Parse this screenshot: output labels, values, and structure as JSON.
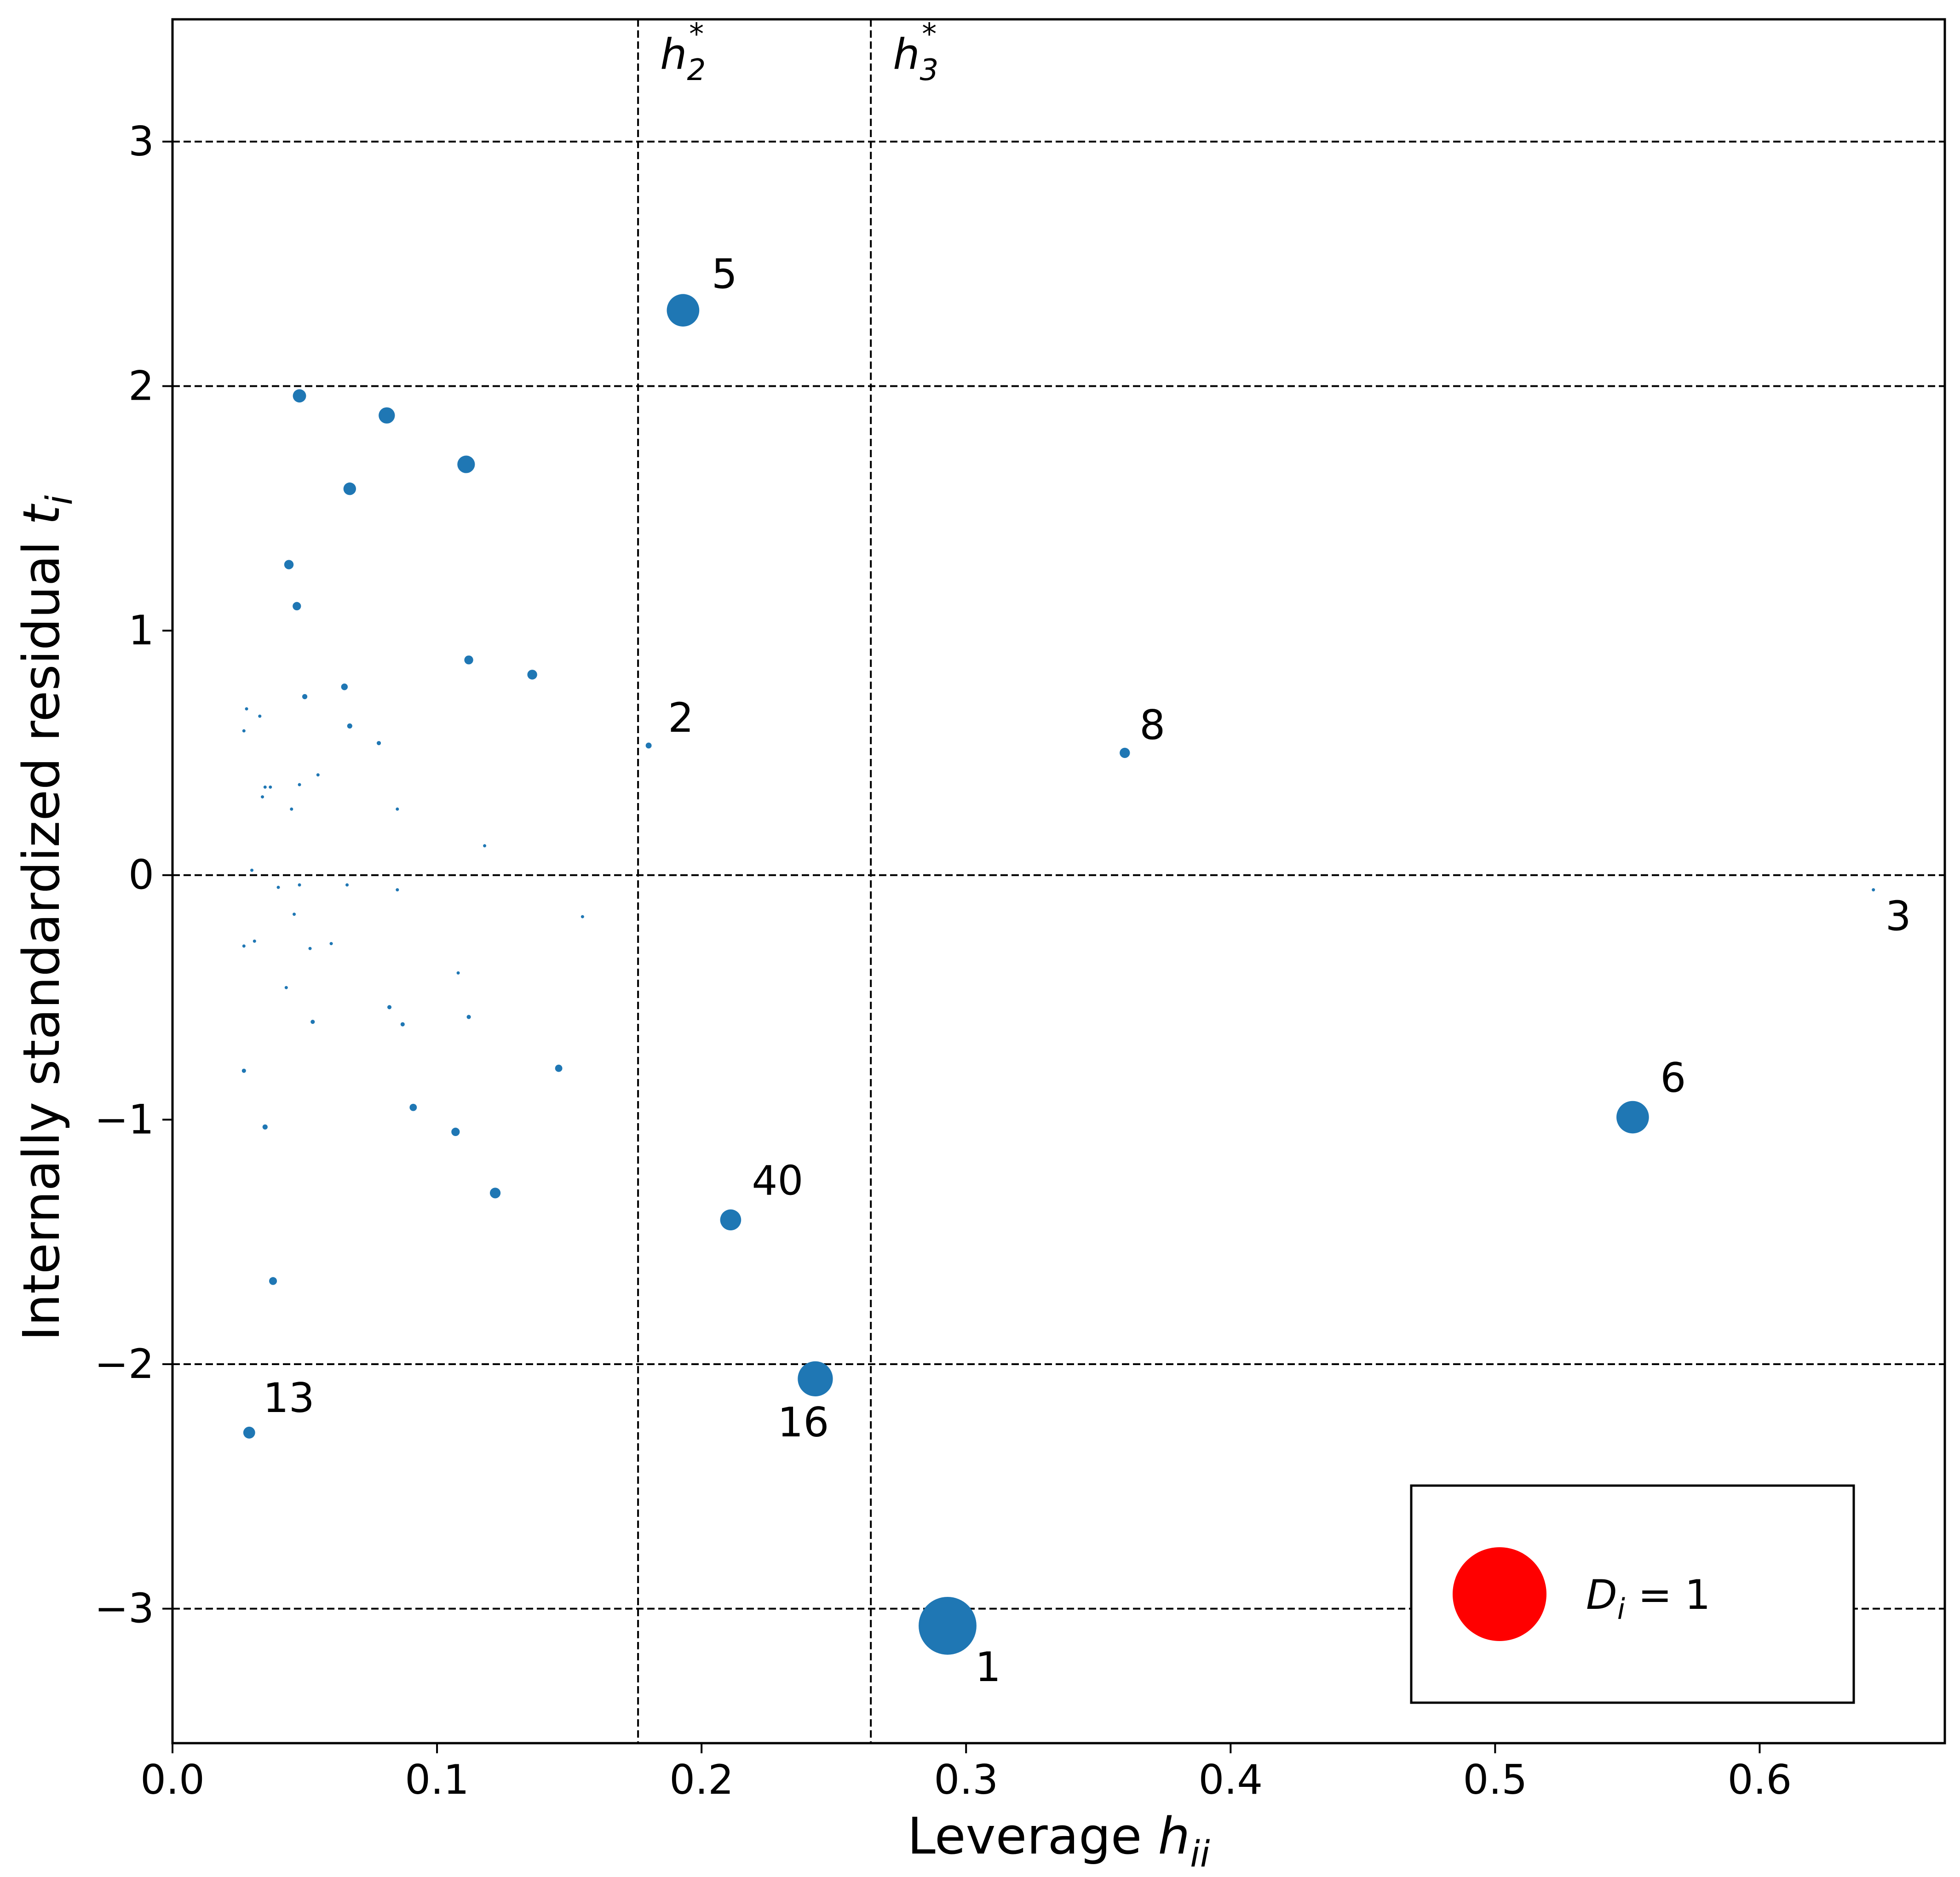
{
  "chart_data": {
    "type": "scatter",
    "title": "",
    "xlabel": "Leverage ",
    "xlabel_math": "h",
    "xlabel_sub": "ii",
    "ylabel": "Internally standardized residual ",
    "ylabel_math": "t",
    "ylabel_sub": "i",
    "xlim": [
      0.0,
      0.67
    ],
    "ylim": [
      -3.55,
      3.5
    ],
    "xticks": [
      0.0,
      0.1,
      0.2,
      0.3,
      0.4,
      0.5,
      0.6
    ],
    "xtick_labels": [
      "0.0",
      "0.1",
      "0.2",
      "0.3",
      "0.4",
      "0.5",
      "0.6"
    ],
    "yticks": [
      3,
      2,
      1,
      0,
      -1,
      -2,
      -3
    ],
    "ytick_labels": [
      "3",
      "2",
      "1",
      "0",
      "−1",
      "−2",
      "−3"
    ],
    "hlines": [
      3,
      2,
      0,
      -2,
      -3
    ],
    "vlines": [
      {
        "x": 0.176,
        "label_math": "h",
        "label_sub": "2",
        "label_sup": "*"
      },
      {
        "x": 0.264,
        "label_math": "h",
        "label_sub": "3",
        "label_sup": "*"
      }
    ],
    "marker_color": "#1f77b4",
    "legend": {
      "color": "#ff0000",
      "label_math": "D",
      "label_sub": "i",
      "label_rest": " = 1",
      "cooks_distance": 1,
      "placement": "bottom-right"
    },
    "points": [
      {
        "h": 0.293,
        "t": -3.07,
        "cook": 0.38,
        "label": "1"
      },
      {
        "h": 0.18,
        "t": 0.53,
        "cook": 0.004,
        "label": "2"
      },
      {
        "h": 0.643,
        "t": -0.06,
        "cook": 0.001,
        "label": "3"
      },
      {
        "h": 0.193,
        "t": 2.31,
        "cook": 0.12,
        "label": "5"
      },
      {
        "h": 0.552,
        "t": -0.99,
        "cook": 0.12,
        "label": "6"
      },
      {
        "h": 0.36,
        "t": 0.5,
        "cook": 0.012,
        "label": "8"
      },
      {
        "h": 0.029,
        "t": -2.28,
        "cook": 0.016,
        "label": "13"
      },
      {
        "h": 0.243,
        "t": -2.06,
        "cook": 0.14,
        "label": "16"
      },
      {
        "h": 0.211,
        "t": -1.41,
        "cook": 0.05,
        "label": "40"
      },
      {
        "h": 0.048,
        "t": 1.96,
        "cook": 0.02,
        "label": ""
      },
      {
        "h": 0.081,
        "t": 1.88,
        "cook": 0.03,
        "label": ""
      },
      {
        "h": 0.111,
        "t": 1.68,
        "cook": 0.035,
        "label": ""
      },
      {
        "h": 0.067,
        "t": 1.58,
        "cook": 0.018,
        "label": ""
      },
      {
        "h": 0.044,
        "t": 1.27,
        "cook": 0.01,
        "label": ""
      },
      {
        "h": 0.047,
        "t": 1.1,
        "cook": 0.008,
        "label": ""
      },
      {
        "h": 0.112,
        "t": 0.88,
        "cook": 0.009,
        "label": ""
      },
      {
        "h": 0.136,
        "t": 0.82,
        "cook": 0.011,
        "label": ""
      },
      {
        "h": 0.065,
        "t": 0.77,
        "cook": 0.005,
        "label": ""
      },
      {
        "h": 0.05,
        "t": 0.73,
        "cook": 0.003,
        "label": ""
      },
      {
        "h": 0.067,
        "t": 0.61,
        "cook": 0.003,
        "label": ""
      },
      {
        "h": 0.078,
        "t": 0.54,
        "cook": 0.002,
        "label": ""
      },
      {
        "h": 0.028,
        "t": 0.68,
        "cook": 0.001,
        "label": ""
      },
      {
        "h": 0.033,
        "t": 0.65,
        "cook": 0.001,
        "label": ""
      },
      {
        "h": 0.027,
        "t": 0.59,
        "cook": 0.001,
        "label": ""
      },
      {
        "h": 0.055,
        "t": 0.41,
        "cook": 0.001,
        "label": ""
      },
      {
        "h": 0.035,
        "t": 0.36,
        "cook": 0.001,
        "label": ""
      },
      {
        "h": 0.037,
        "t": 0.36,
        "cook": 0.001,
        "label": ""
      },
      {
        "h": 0.048,
        "t": 0.37,
        "cook": 0.001,
        "label": ""
      },
      {
        "h": 0.034,
        "t": 0.32,
        "cook": 0.0008,
        "label": ""
      },
      {
        "h": 0.045,
        "t": 0.27,
        "cook": 0.0008,
        "label": ""
      },
      {
        "h": 0.085,
        "t": 0.27,
        "cook": 0.0008,
        "label": ""
      },
      {
        "h": 0.118,
        "t": 0.12,
        "cook": 0.0005,
        "label": ""
      },
      {
        "h": 0.03,
        "t": 0.02,
        "cook": 0.0002,
        "label": ""
      },
      {
        "h": 0.04,
        "t": -0.05,
        "cook": 0.0002,
        "label": ""
      },
      {
        "h": 0.048,
        "t": -0.04,
        "cook": 0.0002,
        "label": ""
      },
      {
        "h": 0.066,
        "t": -0.04,
        "cook": 0.0002,
        "label": ""
      },
      {
        "h": 0.085,
        "t": -0.06,
        "cook": 0.0002,
        "label": ""
      },
      {
        "h": 0.046,
        "t": -0.16,
        "cook": 0.0005,
        "label": ""
      },
      {
        "h": 0.155,
        "t": -0.17,
        "cook": 0.0008,
        "label": ""
      },
      {
        "h": 0.027,
        "t": -0.29,
        "cook": 0.0008,
        "label": ""
      },
      {
        "h": 0.031,
        "t": -0.27,
        "cook": 0.0008,
        "label": ""
      },
      {
        "h": 0.052,
        "t": -0.3,
        "cook": 0.0008,
        "label": ""
      },
      {
        "h": 0.06,
        "t": -0.28,
        "cook": 0.0008,
        "label": ""
      },
      {
        "h": 0.108,
        "t": -0.4,
        "cook": 0.001,
        "label": ""
      },
      {
        "h": 0.043,
        "t": -0.46,
        "cook": 0.001,
        "label": ""
      },
      {
        "h": 0.082,
        "t": -0.54,
        "cook": 0.002,
        "label": ""
      },
      {
        "h": 0.053,
        "t": -0.6,
        "cook": 0.002,
        "label": ""
      },
      {
        "h": 0.087,
        "t": -0.61,
        "cook": 0.002,
        "label": ""
      },
      {
        "h": 0.112,
        "t": -0.58,
        "cook": 0.002,
        "label": ""
      },
      {
        "h": 0.027,
        "t": -0.8,
        "cook": 0.002,
        "label": ""
      },
      {
        "h": 0.146,
        "t": -0.79,
        "cook": 0.006,
        "label": ""
      },
      {
        "h": 0.035,
        "t": -1.03,
        "cook": 0.003,
        "label": ""
      },
      {
        "h": 0.091,
        "t": -0.95,
        "cook": 0.006,
        "label": ""
      },
      {
        "h": 0.107,
        "t": -1.05,
        "cook": 0.008,
        "label": ""
      },
      {
        "h": 0.122,
        "t": -1.3,
        "cook": 0.013,
        "label": ""
      },
      {
        "h": 0.038,
        "t": -1.66,
        "cook": 0.007,
        "label": ""
      }
    ]
  }
}
